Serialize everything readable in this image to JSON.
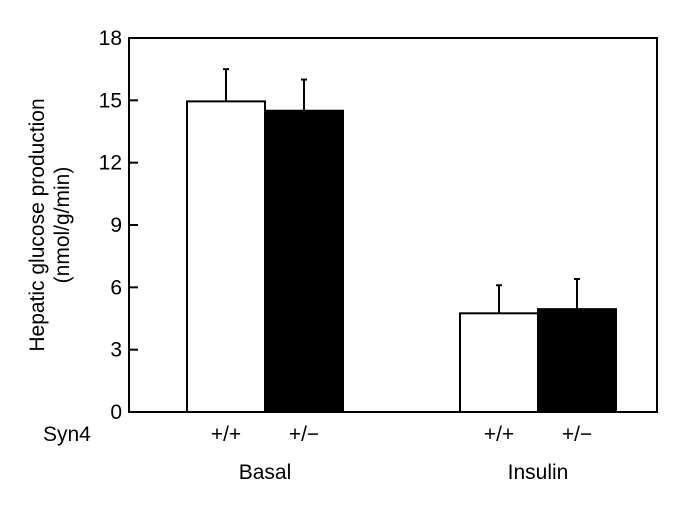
{
  "chart_data": {
    "type": "bar",
    "ylabel_line1": "Hepatic glucose production",
    "ylabel_line2": "(nmol/g/min)",
    "ylim": [
      0,
      18
    ],
    "yticks": [
      "0",
      "3",
      "6",
      "9",
      "12",
      "15",
      "18"
    ],
    "row_label": "Syn4",
    "groups": [
      "Basal",
      "Insulin"
    ],
    "genotypes": [
      "+/+",
      "+/−"
    ],
    "series": [
      {
        "name": "+/+",
        "fill": "#ffffff",
        "values": [
          14.95,
          4.75
        ],
        "errors": [
          1.55,
          1.35
        ]
      },
      {
        "name": "+/−",
        "fill": "#000000",
        "values": [
          14.5,
          4.95
        ],
        "errors": [
          1.5,
          1.45
        ]
      }
    ]
  }
}
